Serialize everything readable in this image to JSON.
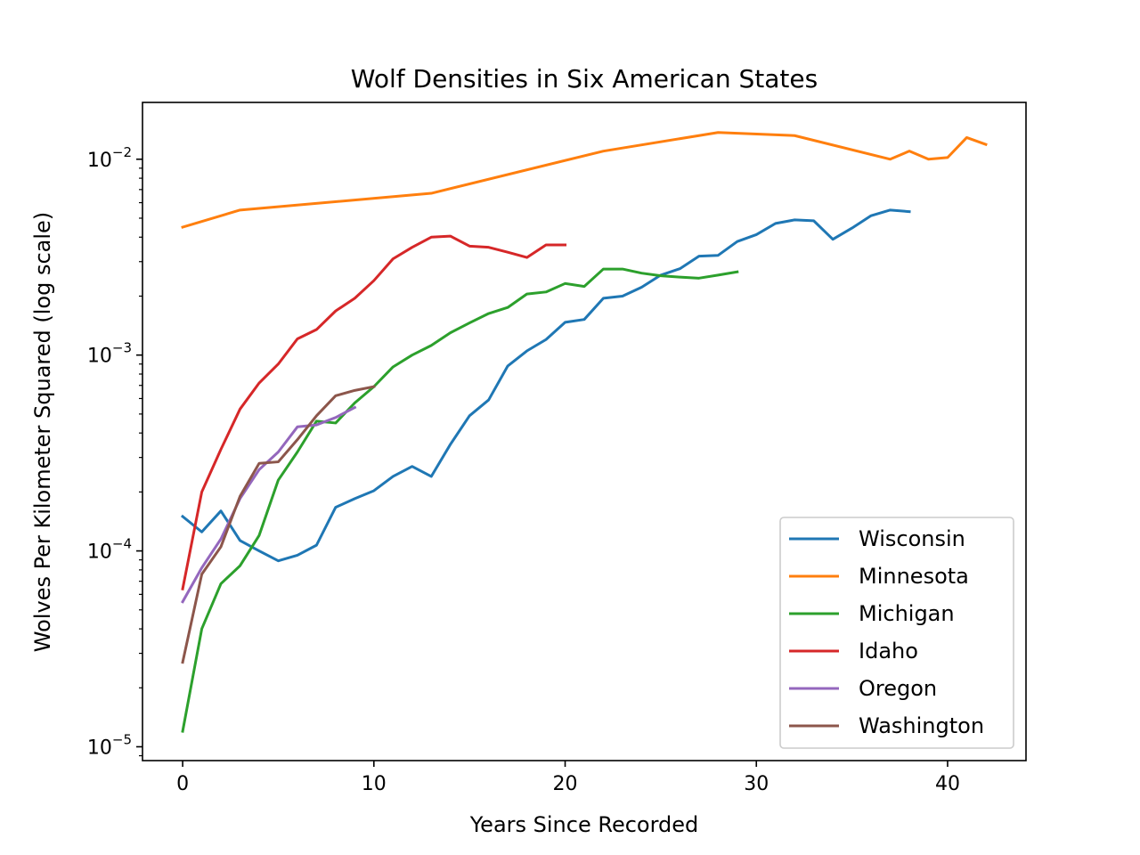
{
  "chart_data": {
    "type": "line",
    "title": "Wolf Densities in Six American States",
    "xlabel": "Years Since Recorded",
    "ylabel": "Wolves Per Kilometer Squared (log scale)",
    "xlim": [
      -2.1,
      44.1
    ],
    "ylim": [
      8.5e-06,
      0.0195
    ],
    "yscale": "log",
    "x_ticks": [
      0,
      10,
      20,
      30,
      40
    ],
    "y_ticks": [
      {
        "value": 1e-05,
        "base": "10",
        "exp": "−5"
      },
      {
        "value": 0.0001,
        "base": "10",
        "exp": "−4"
      },
      {
        "value": 0.001,
        "base": "10",
        "exp": "−3"
      },
      {
        "value": 0.01,
        "base": "10",
        "exp": "−2"
      }
    ],
    "legend": "lower-right",
    "series": [
      {
        "name": "Wisconsin",
        "color": "#1f77b4",
        "x": [
          0,
          1,
          2,
          3,
          4,
          5,
          6,
          7,
          8,
          9,
          10,
          11,
          12,
          13,
          14,
          15,
          16,
          17,
          18,
          19,
          20,
          21,
          22,
          23,
          24,
          25,
          26,
          27,
          28,
          29,
          30,
          31,
          32,
          33,
          34,
          35,
          36,
          37,
          38
        ],
        "y": [
          0.00015,
          0.000125,
          0.00016,
          0.000113,
          0.0001,
          8.9e-05,
          9.5e-05,
          0.000107,
          0.000167,
          0.000185,
          0.000203,
          0.00024,
          0.00027,
          0.00024,
          0.00035,
          0.00049,
          0.00059,
          0.00088,
          0.00105,
          0.0012,
          0.00147,
          0.00152,
          0.00195,
          0.002,
          0.00222,
          0.00256,
          0.00276,
          0.0032,
          0.00323,
          0.0038,
          0.00412,
          0.0047,
          0.0049,
          0.00485,
          0.0039,
          0.00445,
          0.00515,
          0.0055,
          0.0054
        ]
      },
      {
        "name": "Minnesota",
        "color": "#ff7f0e",
        "x": [
          0,
          3,
          13,
          22,
          28,
          32,
          37,
          38,
          39,
          40,
          41,
          42
        ],
        "y": [
          0.0045,
          0.0055,
          0.0067,
          0.011,
          0.0137,
          0.0132,
          0.01,
          0.011,
          0.01,
          0.0102,
          0.0129,
          0.0119
        ]
      },
      {
        "name": "Michigan",
        "color": "#2ca02c",
        "x": [
          0,
          1,
          2,
          3,
          4,
          5,
          6,
          7,
          8,
          9,
          10,
          11,
          12,
          13,
          14,
          15,
          16,
          17,
          18,
          19,
          20,
          21,
          22,
          23,
          24,
          25,
          26,
          27,
          28,
          29
        ],
        "y": [
          1.2e-05,
          4e-05,
          6.8e-05,
          8.4e-05,
          0.00012,
          0.00023,
          0.00032,
          0.00046,
          0.00045,
          0.00057,
          0.00069,
          0.00087,
          0.001,
          0.00112,
          0.0013,
          0.00146,
          0.00163,
          0.00175,
          0.00205,
          0.0021,
          0.00232,
          0.00224,
          0.00275,
          0.00275,
          0.00262,
          0.00254,
          0.0025,
          0.00247,
          0.00256,
          0.00266
        ]
      },
      {
        "name": "Idaho",
        "color": "#d62728",
        "x": [
          0,
          1,
          2,
          3,
          4,
          5,
          6,
          7,
          8,
          9,
          10,
          11,
          12,
          13,
          14,
          15,
          16,
          17,
          18,
          19,
          20
        ],
        "y": [
          6.4e-05,
          0.0002,
          0.00033,
          0.00053,
          0.00072,
          0.0009,
          0.00121,
          0.00135,
          0.00168,
          0.00195,
          0.0024,
          0.0031,
          0.00355,
          0.004,
          0.00405,
          0.0036,
          0.00355,
          0.00335,
          0.00315,
          0.00365,
          0.00365
        ]
      },
      {
        "name": "Oregon",
        "color": "#9467bd",
        "x": [
          0,
          1,
          2,
          3,
          4,
          5,
          6,
          7,
          8,
          9
        ],
        "y": [
          5.5e-05,
          8.2e-05,
          0.000115,
          0.000185,
          0.00026,
          0.00032,
          0.00043,
          0.00044,
          0.00048,
          0.00054
        ]
      },
      {
        "name": "Washington",
        "color": "#8c564b",
        "x": [
          0,
          1,
          2,
          3,
          4,
          5,
          6,
          7,
          8,
          9,
          10
        ],
        "y": [
          2.7e-05,
          7.6e-05,
          0.000105,
          0.00019,
          0.00028,
          0.000285,
          0.00037,
          0.00049,
          0.00062,
          0.00066,
          0.00069
        ]
      }
    ]
  }
}
